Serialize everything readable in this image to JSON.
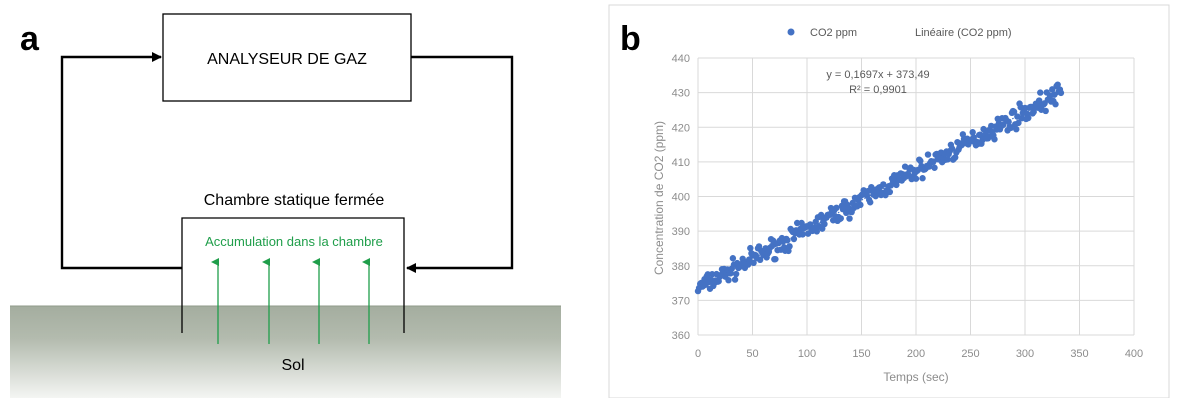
{
  "panel_a": {
    "letter": "a",
    "analyzer_label": "ANALYSEUR DE GAZ",
    "chamber_label": "Chambre statique fermée",
    "accumulation_label": "Accumulation dans la chambre",
    "soil_label": "Sol",
    "colors": {
      "soil_top": "#a4ad9f",
      "soil_bottom": "#f4f5f3",
      "accent_green": "#1f9e4a",
      "line": "#000000"
    }
  },
  "panel_b": {
    "letter": "b",
    "chart_data": {
      "type": "scatter",
      "title": "",
      "xlabel": "Temps (sec)",
      "ylabel": "Concentration de CO2 (ppm)",
      "xlim": [
        0,
        400
      ],
      "ylim": [
        360,
        440
      ],
      "x_ticks": [
        "0",
        "50",
        "100",
        "150",
        "200",
        "250",
        "300",
        "350",
        "400"
      ],
      "y_ticks": [
        "360",
        "370",
        "380",
        "390",
        "400",
        "410",
        "420",
        "430",
        "440"
      ],
      "grid": true,
      "legend_position": "top",
      "series": [
        {
          "name": "CO2 ppm",
          "kind": "points",
          "color": "#4472c4",
          "trend": {
            "slope": 0.1697,
            "intercept": 373.49
          },
          "x_range": [
            0,
            333
          ],
          "noise_ppm": 2
        },
        {
          "name": "Linéaire (CO2 ppm)",
          "kind": "trendline",
          "color": "#4472c4",
          "slope": 0.1697,
          "intercept": 373.49
        }
      ],
      "annotation": {
        "equation": "y = 0,1697x + 373,49",
        "r2": "R² = 0,9901"
      }
    }
  }
}
